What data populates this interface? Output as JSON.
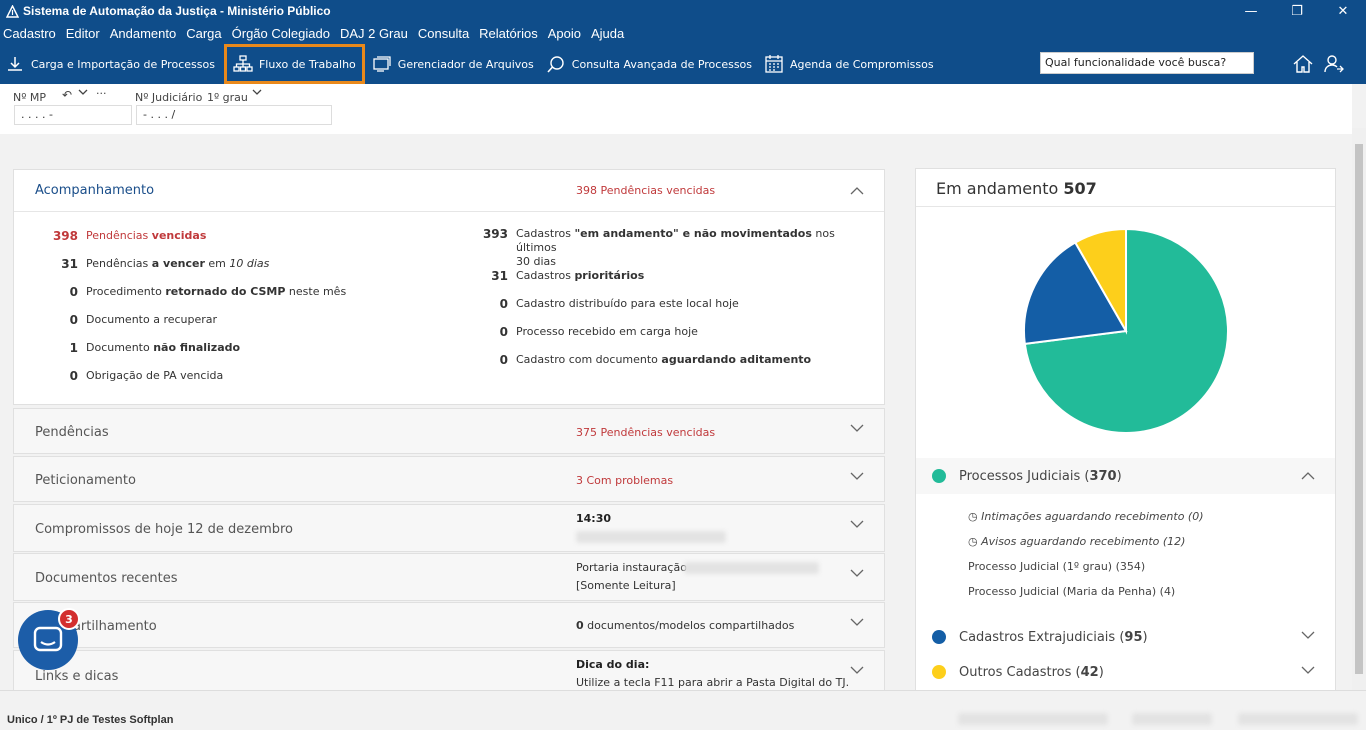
{
  "window": {
    "title": "Sistema de Automação da Justiça - Ministério Público",
    "minimize": "—",
    "restore": "❐",
    "close": "✕"
  },
  "menu": [
    "Cadastro",
    "Editor",
    "Andamento",
    "Carga",
    "Órgão Colegiado",
    "DAJ 2 Grau",
    "Consulta",
    "Relatórios",
    "Apoio",
    "Ajuda"
  ],
  "toolbar": {
    "carga": "Carga e Importação de Processos",
    "fluxo": "Fluxo de Trabalho",
    "gerenciador": "Gerenciador de Arquivos",
    "consulta": "Consulta Avançada de Processos",
    "agenda": "Agenda de Compromissos",
    "search_placeholder": "Qual funcionalidade você busca?"
  },
  "proc": {
    "mp_label": "Nº MP",
    "judiciario_label": "Nº Judiciário",
    "grau": "1º grau",
    "mp_value": ".  .  .  .    -",
    "jud_value": "  -  .  .  .  /",
    "more": "···"
  },
  "acompanhamento": {
    "title": "Acompanhamento",
    "note_num": "398",
    "note_text": " Pendências vencidas",
    "left": [
      {
        "num": "398",
        "pre": "Pendências ",
        "bold": "vencidas",
        "post": ""
      },
      {
        "num": "31",
        "pre": "Pendências ",
        "bold": "a vencer",
        "post": " em ",
        "ital": "10 dias"
      },
      {
        "num": "0",
        "pre": "Procedimento ",
        "bold": "retornado do CSMP",
        "post": " neste mês"
      },
      {
        "num": "0",
        "pre": "Documento a recuperar",
        "bold": "",
        "post": ""
      },
      {
        "num": "1",
        "pre": "Documento ",
        "bold": "não finalizado",
        "post": ""
      },
      {
        "num": "0",
        "pre": "Obrigação de PA vencida",
        "bold": "",
        "post": ""
      }
    ],
    "right": [
      {
        "num": "393",
        "pre": "Cadastros ",
        "bold": "\"em andamento\" e não movimentados",
        "post": " nos últimos",
        "line2": "30 dias"
      },
      {
        "num": "31",
        "pre": "Cadastros ",
        "bold": "prioritários",
        "post": ""
      },
      {
        "num": "0",
        "pre": "Cadastro distribuído para este local hoje",
        "bold": "",
        "post": ""
      },
      {
        "num": "0",
        "pre": "Processo recebido em carga hoje",
        "bold": "",
        "post": ""
      },
      {
        "num": "0",
        "pre": "Cadastro com documento ",
        "bold": "aguardando aditamento",
        "post": ""
      }
    ]
  },
  "pendencias": {
    "title": "Pendências",
    "note_num": "375",
    "note_text": " Pendências vencidas"
  },
  "peticionamento": {
    "title": "Peticionamento",
    "note_num": "3",
    "note_text": " Com problemas"
  },
  "compromissos": {
    "title": "Compromissos de hoje 12 de dezembro",
    "time": "14:30"
  },
  "documentos": {
    "title": "Documentos recentes",
    "line1": "Portaria instauração",
    "line2": "[Somente Leitura]"
  },
  "compartilhamento": {
    "title": "Compartilhamento",
    "num": "0",
    "text": " documentos/modelos compartilhados"
  },
  "links": {
    "title": "Links e dicas",
    "dica_title": "Dica do dia:",
    "dica_text": "Utilize a tecla F11 para abrir a Pasta Digital do TJ."
  },
  "andamento": {
    "title": "Em andamento ",
    "total": "507",
    "colors": {
      "judiciais": "#22bb99",
      "extrajudiciais": "#145ea6",
      "outros": "#fdcf1b"
    },
    "chart_data": {
      "type": "pie",
      "categories": [
        "Processos Judiciais",
        "Cadastros Extrajudiciais",
        "Outros Cadastros"
      ],
      "values": [
        370,
        95,
        42
      ]
    },
    "judiciais_label": "Processos Judiciais (",
    "judiciais_num": "370",
    "extra_label": "Cadastros Extrajudiciais (",
    "extra_num": "95",
    "outros_label": "Outros Cadastros (",
    "outros_num": "42",
    "close_paren": ")",
    "items": [
      "Intimações aguardando recebimento (0)",
      "Avisos aguardando recebimento (12)",
      "Processo Judicial (1º grau) (354)",
      "Processo Judicial (Maria da Penha) (4)"
    ]
  },
  "status": {
    "text": "Unico / 1º PJ de Testes Softplan"
  },
  "chat": {
    "badge": "3"
  }
}
